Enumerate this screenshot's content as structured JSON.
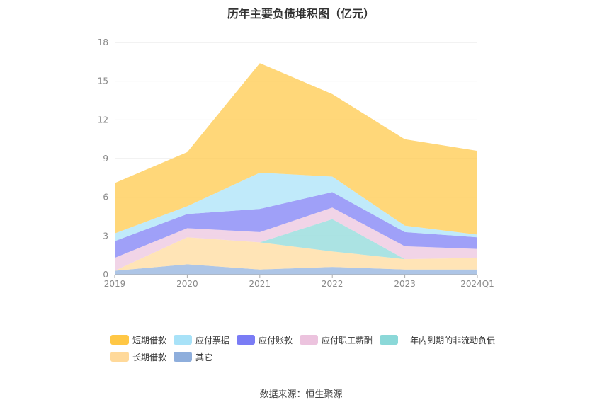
{
  "title": "历年主要负债堆积图（亿元）",
  "source": "数据来源：恒生聚源",
  "chart_data": {
    "type": "area",
    "stacked": true,
    "categories": [
      "2019",
      "2020",
      "2021",
      "2022",
      "2023",
      "2024Q1"
    ],
    "ylim": [
      0,
      18
    ],
    "yticks": [
      "0",
      "3",
      "6",
      "9",
      "12",
      "15",
      "18"
    ],
    "grid": true,
    "legend_position": "bottom",
    "series": [
      {
        "name": "其它",
        "color": "#8eaedc",
        "values": [
          0.3,
          0.8,
          0.4,
          0.6,
          0.4,
          0.4
        ]
      },
      {
        "name": "长期借款",
        "color": "#ffd99a",
        "values": [
          0.0,
          2.1,
          2.1,
          1.2,
          0.8,
          0.9
        ]
      },
      {
        "name": "一年内到期的非流动负债",
        "color": "#8bd8d8",
        "values": [
          0.0,
          0.0,
          0.0,
          2.5,
          0.0,
          0.0
        ]
      },
      {
        "name": "应付职工薪酬",
        "color": "#ecc3de",
        "values": [
          1.0,
          0.7,
          0.8,
          0.9,
          1.0,
          0.7
        ]
      },
      {
        "name": "应付账款",
        "color": "#7a7cf5",
        "values": [
          1.3,
          1.1,
          1.8,
          1.2,
          1.1,
          0.9
        ]
      },
      {
        "name": "应付票据",
        "color": "#a8e2f8",
        "values": [
          0.6,
          0.6,
          2.8,
          1.2,
          0.5,
          0.2
        ]
      },
      {
        "name": "短期借款",
        "color": "#ffc745",
        "values": [
          3.9,
          4.2,
          8.5,
          6.4,
          6.7,
          6.5
        ]
      }
    ]
  },
  "legend": [
    {
      "name": "短期借款",
      "color": "#ffc745"
    },
    {
      "name": "应付票据",
      "color": "#a8e2f8"
    },
    {
      "name": "应付账款",
      "color": "#7a7cf5"
    },
    {
      "name": "应付职工薪酬",
      "color": "#ecc3de"
    },
    {
      "name": "一年内到期的非流动负债",
      "color": "#8bd8d8"
    },
    {
      "name": "长期借款",
      "color": "#ffd99a"
    },
    {
      "name": "其它",
      "color": "#8eaedc"
    }
  ]
}
